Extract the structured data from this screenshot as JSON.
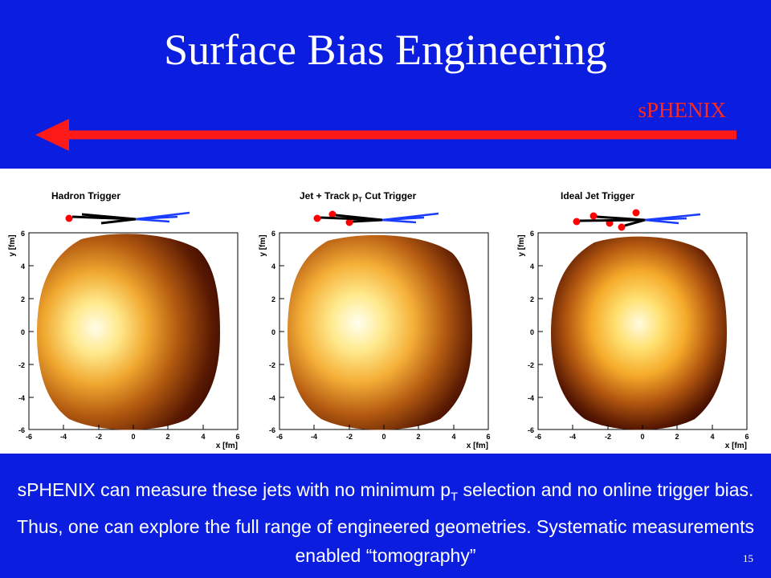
{
  "slide": {
    "title": "Surface Bias Engineering",
    "arrow_label": "sPHENIX",
    "page_number": "15",
    "colors": {
      "background": "#0b1ee0",
      "arrow": "#ff1a1a",
      "text": "#ffffff"
    }
  },
  "plots": [
    {
      "title": "Hadron Trigger",
      "title_sub": ""
    },
    {
      "title_pre": "Jet + Track p",
      "title_sub": "T",
      "title_post": " Cut Trigger"
    },
    {
      "title": "Ideal Jet Trigger",
      "title_sub": ""
    }
  ],
  "axes": {
    "xlabel": "x [fm]",
    "ylabel": "y [fm]",
    "xticks": [
      "-6",
      "-4",
      "-2",
      "0",
      "2",
      "4",
      "6"
    ],
    "yticks": [
      "-6",
      "-4",
      "-2",
      "0",
      "2",
      "4",
      "6"
    ]
  },
  "caption": {
    "part1": "sPHENIX can measure these jets with no minimum p",
    "sub": "T",
    "part2": " selection and no online trigger bias. Thus, one can explore the full range of engineered geometries. Systematic measurements enabled “tomography”"
  }
}
